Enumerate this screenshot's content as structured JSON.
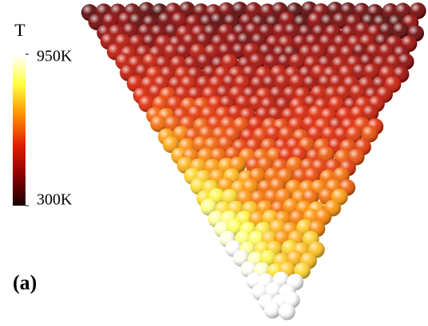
{
  "colorbar": {
    "title": "T",
    "range": [
      300,
      950
    ],
    "ticks": [
      {
        "value": 950,
        "label": "950K"
      },
      {
        "value": 300,
        "label": "300K"
      }
    ],
    "colors": [
      "#1a0000",
      "#8b0000",
      "#e02000",
      "#ff9000",
      "#ffff40",
      "#ffffff"
    ]
  },
  "panel_label": "(a)"
}
